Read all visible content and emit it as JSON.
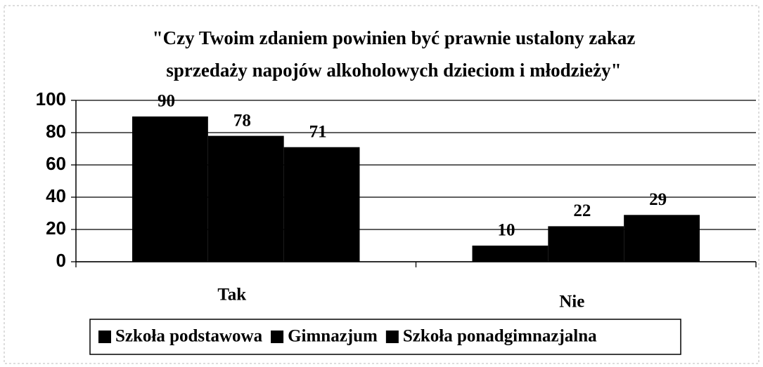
{
  "chart_data": {
    "type": "bar",
    "title": [
      "\"Czy Twoim zdaniem powinien być prawnie ustalony zakaz",
      "sprzedaży napojów alkoholowych dzieciom i młodzieży\""
    ],
    "categories": [
      "Tak",
      "Nie"
    ],
    "series": [
      {
        "name": "Szkoła podstawowa",
        "color": "#000000",
        "values": [
          90,
          10
        ]
      },
      {
        "name": "Gimnazjum",
        "color": "#000000",
        "values": [
          78,
          22
        ]
      },
      {
        "name": "Szkoła ponadgimnazjalna",
        "color": "#000000",
        "values": [
          71,
          29
        ]
      }
    ],
    "ylim": [
      0,
      100
    ],
    "yticks": [
      0,
      20,
      40,
      60,
      80,
      100
    ],
    "grid": true,
    "legend": "bottom"
  }
}
